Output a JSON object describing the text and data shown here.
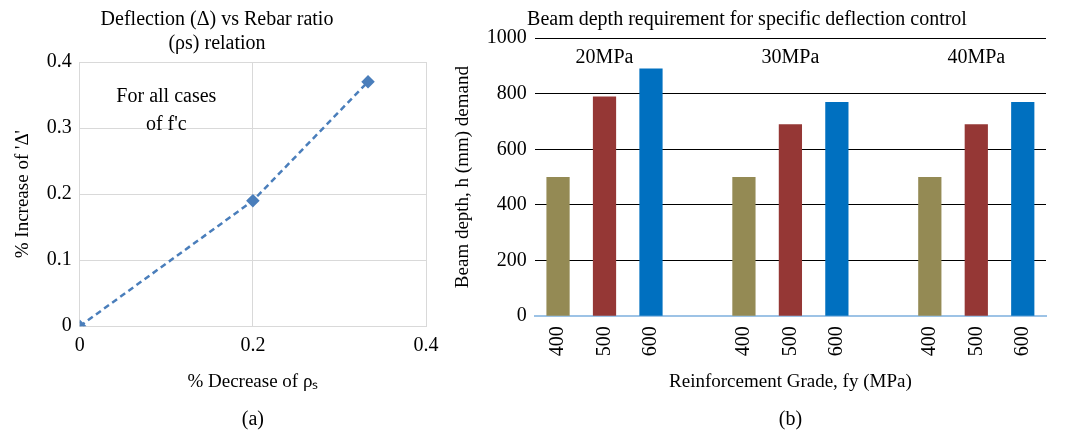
{
  "chart_data": [
    {
      "type": "line",
      "title": "Deflection (Δ) vs Rebar ratio (ρs) relation",
      "xlabel": "% Decrease of ρₛ",
      "ylabel": "% Increase of 'Δ'",
      "x": [
        0,
        0.2,
        0.333
      ],
      "series": [
        {
          "color": "#4a7ebb",
          "values": [
            0,
            0.19,
            0.37
          ]
        }
      ],
      "xlim": [
        0,
        0.4
      ],
      "xticks": [
        0,
        0.2,
        0.4
      ],
      "ylim": [
        0,
        0.4
      ],
      "yticks": [
        0,
        0.1,
        0.2,
        0.3,
        0.4
      ],
      "grid": true,
      "marker": "diamond",
      "line_style": "dashed",
      "annotations": [
        "For all cases of f'c",
        "(a)"
      ]
    },
    {
      "type": "bar",
      "title": "Beam depth requirement for specific deflection control",
      "xlabel": "Reinforcement Grade, fy (MPa)",
      "ylabel": "Beam depth, h (mm) demand",
      "categories": [
        "400",
        "500",
        "600",
        null,
        "400",
        "500",
        "600",
        null,
        "400",
        "500",
        "600"
      ],
      "values": [
        500,
        790,
        890,
        null,
        500,
        690,
        770,
        null,
        500,
        690,
        770
      ],
      "colors": [
        "#948a54",
        "#953735",
        "#0070c0",
        "#ffffff",
        "#948a54",
        "#953735",
        "#0070c0",
        "#ffffff",
        "#948a54",
        "#953735",
        "#0070c0"
      ],
      "ylim": [
        0,
        1000
      ],
      "yticks": [
        0,
        200,
        400,
        600,
        800,
        1000
      ],
      "grid": "y",
      "annotations": [
        "20MPa",
        "30MPa",
        "40MPa",
        "(b)"
      ]
    }
  ]
}
